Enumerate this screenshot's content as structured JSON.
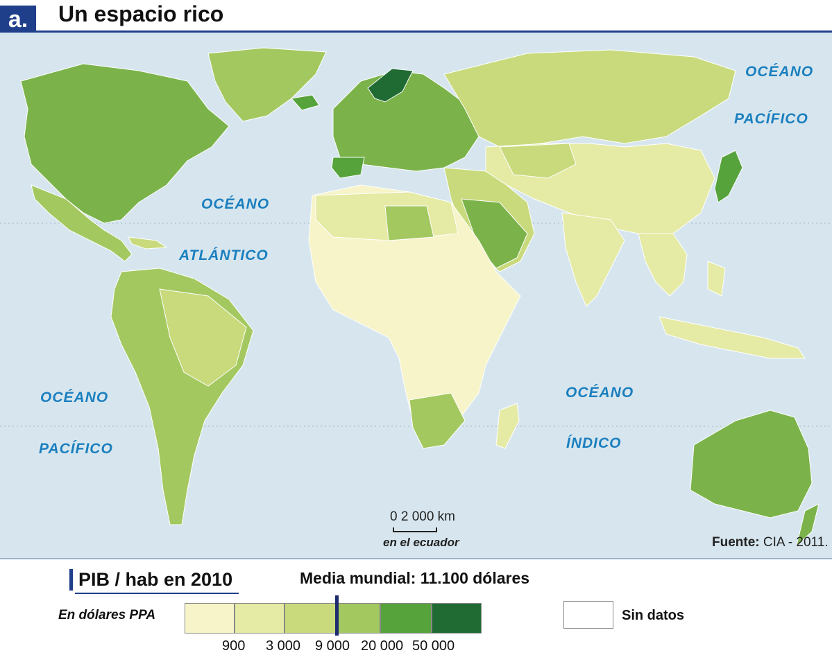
{
  "header": {
    "badge": "a.",
    "title": "Un espacio rico"
  },
  "oceans": {
    "pacific_ne_1": "OCÉANO",
    "pacific_ne_2": "PACÍFICO",
    "atlantic_1": "OCÉANO",
    "atlantic_2": "ATLÁNTICO",
    "pacific_sw_1": "OCÉANO",
    "pacific_sw_2": "PACÍFICO",
    "indian_1": "OCÉANO",
    "indian_2": "ÍNDICO"
  },
  "scale": {
    "numbers": "0   2 000 km",
    "note": "en el ecuador"
  },
  "source": {
    "label": "Fuente:",
    "value": "CIA - 2011."
  },
  "legend": {
    "title": "PIB / hab en 2010",
    "media": "Media mundial: 11.100 dólares",
    "unit": "En dólares PPA",
    "nodata": "Sin datos",
    "ticks": [
      "900",
      "3 000",
      "9 000",
      "20 000",
      "50 000"
    ],
    "colors": [
      "#f6f4c8",
      "#e5eaa4",
      "#c9da7c",
      "#a4c860",
      "#7bb34a",
      "#56a33c",
      "#1f6b33"
    ],
    "media_value": 11100
  },
  "colors": {
    "ocean": "#d7e6ee",
    "border": "#ffffff",
    "brand": "#1f3f8a"
  }
}
